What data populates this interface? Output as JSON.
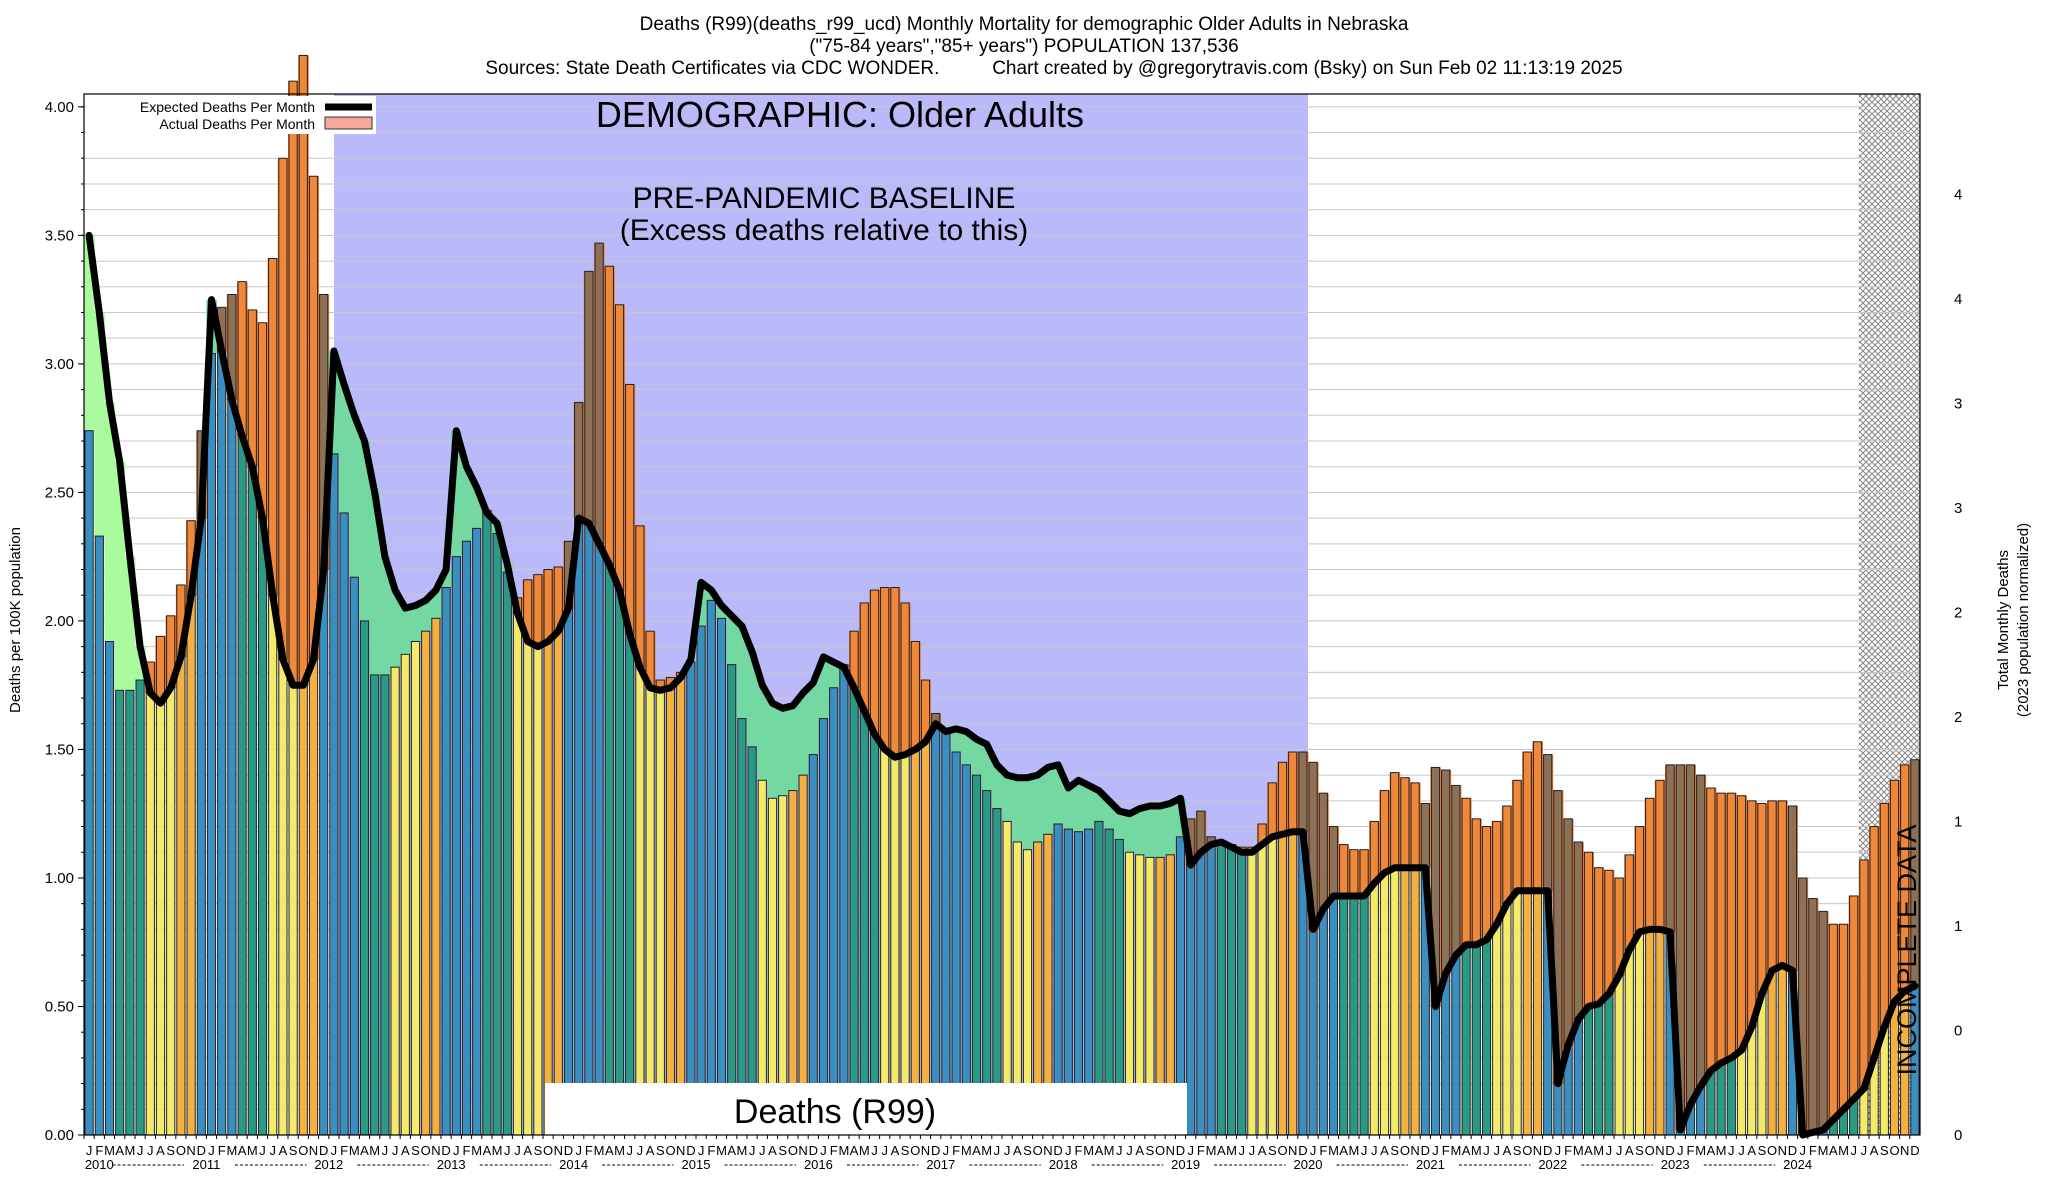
{
  "header": {
    "title": "Deaths (R99)(deaths_r99_ucd) Monthly Mortality for demographic Older Adults in Nebraska",
    "subtitle": "(\"75-84 years\",\"85+ years\") POPULATION 137,536",
    "sources": "Sources: State Death Certificates via CDC WONDER.",
    "credit": "Chart created by @gregorytravis.com (Bsky) on Sun Feb 02 11:13:19 2025"
  },
  "colors": {
    "winter": "#3a8ec0",
    "spring": "#2a9a84",
    "summer": "#f4ea6a",
    "fall": "#f3b142",
    "excess": "#f07a34",
    "deficit": "#6fd99c",
    "early_deficit": "#a5fa99",
    "baseline_panel": "#babafb",
    "expected_line": "#000000",
    "actual_legend": "#f4a79a",
    "incomplete_hatch": "#888888"
  },
  "chart_data": {
    "type": "bar",
    "title": "DEMOGRAPHIC: Older Adults",
    "baseline_label_1": "PRE-PANDEMIC BASELINE",
    "baseline_label_2": "(Excess deaths relative to this)",
    "cause_label": "Deaths (R99)",
    "incomplete_label": "INCOMPLETE DATA",
    "ylabel": "Deaths per 100K population",
    "ylabel_right": "Total Monthly Deaths",
    "ylabel_right_2": "(2023 population normalized)",
    "ylim": [
      0,
      4.05
    ],
    "yticks": [
      "0.00",
      "0.50",
      "1.00",
      "1.50",
      "2.00",
      "2.50",
      "3.00",
      "3.50",
      "4.00"
    ],
    "right_ticks": [
      "0",
      "0",
      "1",
      "1",
      "2",
      "2",
      "3",
      "3",
      "4",
      "4"
    ],
    "month_letters": [
      "J",
      "F",
      "M",
      "A",
      "M",
      "J",
      "J",
      "A",
      "S",
      "O",
      "N",
      "D"
    ],
    "years": [
      "2010",
      "2011",
      "2012",
      "2013",
      "2014",
      "2015",
      "2016",
      "2017",
      "2018",
      "2019",
      "2020",
      "2021",
      "2022",
      "2023",
      "2024"
    ],
    "baseline_end": "2019-12",
    "incomplete_from": "2024-07",
    "legend": [
      {
        "label": "Expected Deaths Per Month",
        "color": "#000000"
      },
      {
        "label": "Actual Deaths Per Month",
        "color": "#f4a79a"
      }
    ],
    "actual": [
      2.74,
      2.33,
      1.92,
      1.73,
      1.73,
      1.77,
      1.84,
      1.94,
      2.02,
      2.14,
      2.39,
      2.74,
      3.04,
      3.22,
      3.27,
      3.32,
      3.21,
      3.16,
      3.41,
      3.8,
      4.1,
      4.2,
      3.73,
      3.27,
      2.65,
      2.42,
      2.17,
      2.0,
      1.79,
      1.79,
      1.82,
      1.87,
      1.92,
      1.96,
      2.01,
      2.13,
      2.25,
      2.31,
      2.36,
      2.43,
      2.34,
      2.19,
      2.09,
      2.16,
      2.18,
      2.2,
      2.21,
      2.31,
      2.85,
      3.36,
      3.47,
      3.38,
      3.23,
      2.92,
      2.37,
      1.96,
      1.77,
      1.78,
      1.8,
      1.84,
      1.98,
      2.08,
      2.01,
      1.83,
      1.62,
      1.51,
      1.38,
      1.31,
      1.32,
      1.34,
      1.4,
      1.48,
      1.62,
      1.74,
      1.83,
      1.96,
      2.07,
      2.12,
      2.13,
      2.13,
      2.07,
      1.92,
      1.77,
      1.64,
      1.57,
      1.49,
      1.44,
      1.4,
      1.34,
      1.27,
      1.22,
      1.14,
      1.11,
      1.14,
      1.17,
      1.21,
      1.19,
      1.18,
      1.19,
      1.22,
      1.19,
      1.15,
      1.1,
      1.09,
      1.08,
      1.08,
      1.09,
      1.16,
      1.23,
      1.26,
      1.16,
      1.14,
      1.13,
      1.12,
      1.12,
      1.21,
      1.37,
      1.45,
      1.49,
      1.49,
      1.45,
      1.33,
      1.2,
      1.13,
      1.11,
      1.11,
      1.22,
      1.34,
      1.41,
      1.39,
      1.37,
      1.29,
      1.43,
      1.42,
      1.36,
      1.31,
      1.23,
      1.2,
      1.22,
      1.28,
      1.38,
      1.49,
      1.53,
      1.48,
      1.34,
      1.23,
      1.14,
      1.1,
      1.04,
      1.03,
      1.0,
      1.09,
      1.2,
      1.31,
      1.38,
      1.44,
      1.44,
      1.44,
      1.4,
      1.35,
      1.33,
      1.33,
      1.32,
      1.3,
      1.29,
      1.3,
      1.3,
      1.28,
      1.0,
      0.92,
      0.87,
      0.82,
      0.82,
      0.93,
      1.07,
      1.2,
      1.29,
      1.38,
      1.44,
      1.46
    ],
    "expected": [
      3.5,
      3.2,
      2.85,
      2.62,
      2.25,
      1.9,
      1.72,
      1.68,
      1.74,
      1.86,
      2.1,
      2.4,
      3.25,
      3.05,
      2.86,
      2.72,
      2.6,
      2.4,
      2.1,
      1.85,
      1.75,
      1.75,
      1.85,
      2.2,
      3.05,
      2.92,
      2.8,
      2.7,
      2.5,
      2.25,
      2.12,
      2.05,
      2.06,
      2.08,
      2.12,
      2.2,
      2.74,
      2.6,
      2.52,
      2.42,
      2.38,
      2.22,
      2.03,
      1.92,
      1.9,
      1.92,
      1.96,
      2.05,
      2.4,
      2.38,
      2.3,
      2.22,
      2.12,
      1.95,
      1.82,
      1.74,
      1.73,
      1.74,
      1.78,
      1.85,
      2.15,
      2.12,
      2.06,
      2.02,
      1.98,
      1.88,
      1.75,
      1.68,
      1.66,
      1.67,
      1.72,
      1.76,
      1.86,
      1.84,
      1.82,
      1.74,
      1.65,
      1.56,
      1.5,
      1.47,
      1.48,
      1.5,
      1.53,
      1.6,
      1.57,
      1.58,
      1.57,
      1.54,
      1.52,
      1.44,
      1.4,
      1.39,
      1.39,
      1.4,
      1.43,
      1.44,
      1.35,
      1.38,
      1.36,
      1.34,
      1.3,
      1.26,
      1.25,
      1.27,
      1.28,
      1.28,
      1.29,
      1.31,
      1.05,
      1.1,
      1.13,
      1.14,
      1.12,
      1.1,
      1.1,
      1.13,
      1.16,
      1.17,
      1.18,
      1.18,
      0.8,
      0.88,
      0.93,
      0.93,
      0.93,
      0.93,
      0.98,
      1.02,
      1.04,
      1.04,
      1.04,
      1.04,
      0.5,
      0.63,
      0.7,
      0.74,
      0.74,
      0.76,
      0.82,
      0.9,
      0.95,
      0.95,
      0.95,
      0.95,
      0.2,
      0.35,
      0.45,
      0.5,
      0.51,
      0.55,
      0.62,
      0.72,
      0.79,
      0.8,
      0.8,
      0.79,
      0.02,
      0.12,
      0.19,
      0.25,
      0.28,
      0.3,
      0.33,
      0.42,
      0.55,
      0.64,
      0.66,
      0.64,
      0.0,
      0.01,
      0.02,
      0.06,
      0.1,
      0.14,
      0.18,
      0.3,
      0.42,
      0.52,
      0.56,
      0.58
    ]
  }
}
